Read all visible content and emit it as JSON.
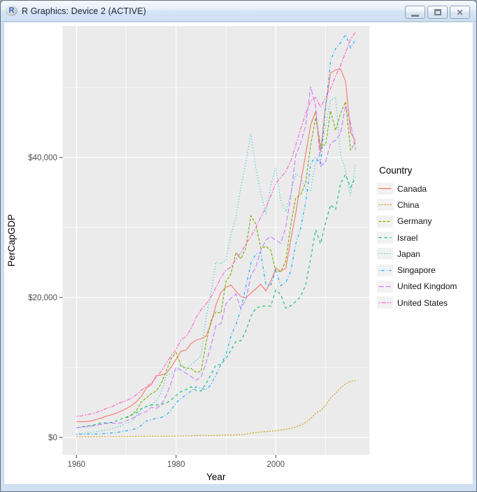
{
  "window": {
    "title": "R Graphics: Device 2 (ACTIVE)",
    "app_icon": "r-logo-icon",
    "app_icon_letter": "R",
    "controls": [
      {
        "name": "minimize-button",
        "icon": "minimize-icon"
      },
      {
        "name": "restore-button",
        "icon": "restore-icon"
      },
      {
        "name": "close-button",
        "icon": "close-icon"
      }
    ]
  },
  "chart_data": {
    "type": "line",
    "title": "",
    "xlabel": "Year",
    "ylabel": "PerCapGDP",
    "legend_title": "Country",
    "legend_position": "right",
    "grid": true,
    "xlim": [
      1957.2,
      2018.8
    ],
    "ylim": [
      -2500,
      58800
    ],
    "x_major_ticks": [
      1960,
      1980,
      2000
    ],
    "x_minor_gridlines": [
      1970,
      1990,
      2010
    ],
    "y_major_ticks": [
      {
        "value": 0,
        "label": "$0"
      },
      {
        "value": 20000,
        "label": "$20,000"
      },
      {
        "value": 40000,
        "label": "$40,000"
      }
    ],
    "y_minor_gridlines": [
      10000,
      30000,
      50000
    ],
    "style": {
      "panel_bg": "#EBEBEB",
      "grid_color": "#FFFFFF",
      "tick_color": "#333333",
      "tick_label_color": "#4D4D4D",
      "axis_title_color": "#000000",
      "legend_key_bg": "#F2F2F2"
    },
    "series": [
      {
        "name": "Canada",
        "color": "#F8766D",
        "linetype": "solid",
        "dash": "",
        "start_year": 1960,
        "values": [
          2259,
          2240,
          2268,
          2374,
          2555,
          2770,
          3047,
          3217,
          3462,
          3764,
          4122,
          4520,
          5090,
          5839,
          7033,
          7511,
          8809,
          8919,
          9133,
          10042,
          11170,
          12337,
          12482,
          13425,
          13877,
          14115,
          14461,
          16309,
          18937,
          20716,
          21449,
          21768,
          20880,
          20121,
          19935,
          20613,
          21227,
          21902,
          20921,
          22315,
          24190,
          23738,
          24169,
          28204,
          32020,
          36382,
          40504,
          44660,
          46594,
          40773,
          47450,
          52082,
          52497,
          52635,
          50893,
          43586,
          42316
        ]
      },
      {
        "name": "China",
        "color": "#CD9600",
        "linetype": "dotted",
        "dash": "2,2",
        "start_year": 1960,
        "values": [
          90,
          76,
          71,
          74,
          85,
          98,
          104,
          97,
          91,
          100,
          113,
          119,
          132,
          157,
          160,
          178,
          165,
          185,
          156,
          184,
          195,
          197,
          203,
          225,
          250,
          294,
          282,
          251,
          283,
          310,
          318,
          333,
          366,
          377,
          473,
          610,
          709,
          781,
          828,
          873,
          959,
          1053,
          1148,
          1288,
          1508,
          1753,
          2099,
          2694,
          3468,
          3832,
          4550,
          5618,
          6316,
          7050,
          7651,
          8033,
          8123
        ]
      },
      {
        "name": "Germany",
        "color": "#7CAE00",
        "linetype": "dashed",
        "dash": "4,2",
        "start_year": 1970,
        "values": [
          2761,
          3193,
          3809,
          5046,
          5639,
          6236,
          6634,
          7682,
          9482,
          11284,
          12138,
          10209,
          9914,
          9864,
          9313,
          9430,
          13460,
          16678,
          17931,
          17766,
          22304,
          23358,
          26438,
          25523,
          27077,
          31658,
          30486,
          26998,
          27289,
          26726,
          23719,
          23687,
          25205,
          30360,
          34166,
          34697,
          36448,
          41815,
          45699,
          41733,
          41786,
          46645,
          43858,
          46286,
          47960,
          41086,
          42136
        ]
      },
      {
        "name": "Israel",
        "color": "#00BE67",
        "linetype": "dashed",
        "dash": "4,4",
        "start_year": 1960,
        "values": [
          1366,
          1506,
          1597,
          1705,
          1887,
          2079,
          2087,
          2142,
          2354,
          2634,
          2902,
          3166,
          3488,
          4099,
          4413,
          4636,
          4624,
          4722,
          4909,
          5351,
          5999,
          6563,
          6836,
          7243,
          6712,
          6623,
          7670,
          9021,
          10353,
          10440,
          11264,
          12441,
          13702,
          13834,
          15222,
          17292,
          18464,
          18752,
          18780,
          18772,
          21062,
          20425,
          18449,
          18810,
          19398,
          20157,
          21797,
          25554,
          29672,
          27695,
          30736,
          33250,
          32567,
          36291,
          37582,
          35729,
          37181
        ]
      },
      {
        "name": "Japan",
        "color": "#00BFC4",
        "linetype": "dotted",
        "dash": "1,3",
        "start_year": 1960,
        "values": [
          479,
          564,
          634,
          718,
          836,
          920,
          1058,
          1229,
          1451,
          1669,
          2038,
          2272,
          2967,
          3998,
          4353,
          4659,
          5198,
          6336,
          8821,
          9106,
          9465,
          10361,
          9578,
          10425,
          10985,
          11585,
          17112,
          20745,
          25059,
          24813,
          25359,
          28925,
          31465,
          35766,
          39269,
          43440,
          38437,
          35022,
          31903,
          36027,
          38532,
          33846,
          32289,
          34808,
          37689,
          37218,
          35434,
          35275,
          39339,
          40855,
          44508,
          48168,
          48603,
          40454,
          38109,
          34524,
          38972
        ]
      },
      {
        "name": "Singapore",
        "color": "#00A9FF",
        "linetype": "dotdash",
        "dash": "1,3,4,3",
        "start_year": 1960,
        "values": [
          428,
          449,
          472,
          511,
          485,
          516,
          566,
          626,
          708,
          812,
          926,
          1071,
          1264,
          1685,
          2341,
          2490,
          2759,
          2845,
          3193,
          3901,
          4928,
          5596,
          6077,
          6633,
          7228,
          7002,
          6799,
          7539,
          8914,
          10395,
          11862,
          14502,
          16136,
          18290,
          21552,
          24914,
          26233,
          26376,
          21829,
          21796,
          23852,
          21700,
          22160,
          23730,
          27608,
          29961,
          33580,
          39224,
          40008,
          38927,
          47237,
          53891,
          55546,
          56389,
          57565,
          55646,
          56828
        ]
      },
      {
        "name": "United Kingdom",
        "color": "#C77CFF",
        "linetype": "longdash",
        "dash": "7,3",
        "start_year": 1960,
        "values": [
          1398,
          1472,
          1525,
          1613,
          1748,
          1874,
          1987,
          2059,
          1975,
          2101,
          2348,
          2650,
          3030,
          3426,
          3666,
          4300,
          4138,
          4681,
          5977,
          7805,
          10032,
          9599,
          9146,
          8691,
          8179,
          8652,
          10611,
          13119,
          15987,
          16239,
          19095,
          19900,
          20487,
          18389,
          19709,
          23123,
          24333,
          26734,
          28214,
          28670,
          28150,
          27744,
          30057,
          34419,
          40290,
          42030,
          44600,
          50134,
          47287,
          38713,
          39436,
          42039,
          42463,
          43449,
          47425,
          44975,
          41064
        ]
      },
      {
        "name": "United States",
        "color": "#FF61CC",
        "linetype": "twodash",
        "dash": "2,2,6,2",
        "start_year": 1960,
        "values": [
          3007,
          3067,
          3244,
          3375,
          3574,
          3828,
          4146,
          4336,
          4696,
          5032,
          5234,
          5609,
          6094,
          6726,
          7226,
          7801,
          8592,
          9453,
          10565,
          11674,
          12575,
          13976,
          14434,
          15544,
          17121,
          18237,
          19071,
          20039,
          21417,
          22857,
          23889,
          24342,
          25419,
          26387,
          27695,
          28691,
          29968,
          31459,
          32854,
          34514,
          36330,
          37134,
          38023,
          39496,
          41713,
          44115,
          46299,
          48050,
          48570,
          47195,
          48468,
          49883,
          51603,
          53107,
          55050,
          56863,
          57904
        ]
      }
    ]
  }
}
